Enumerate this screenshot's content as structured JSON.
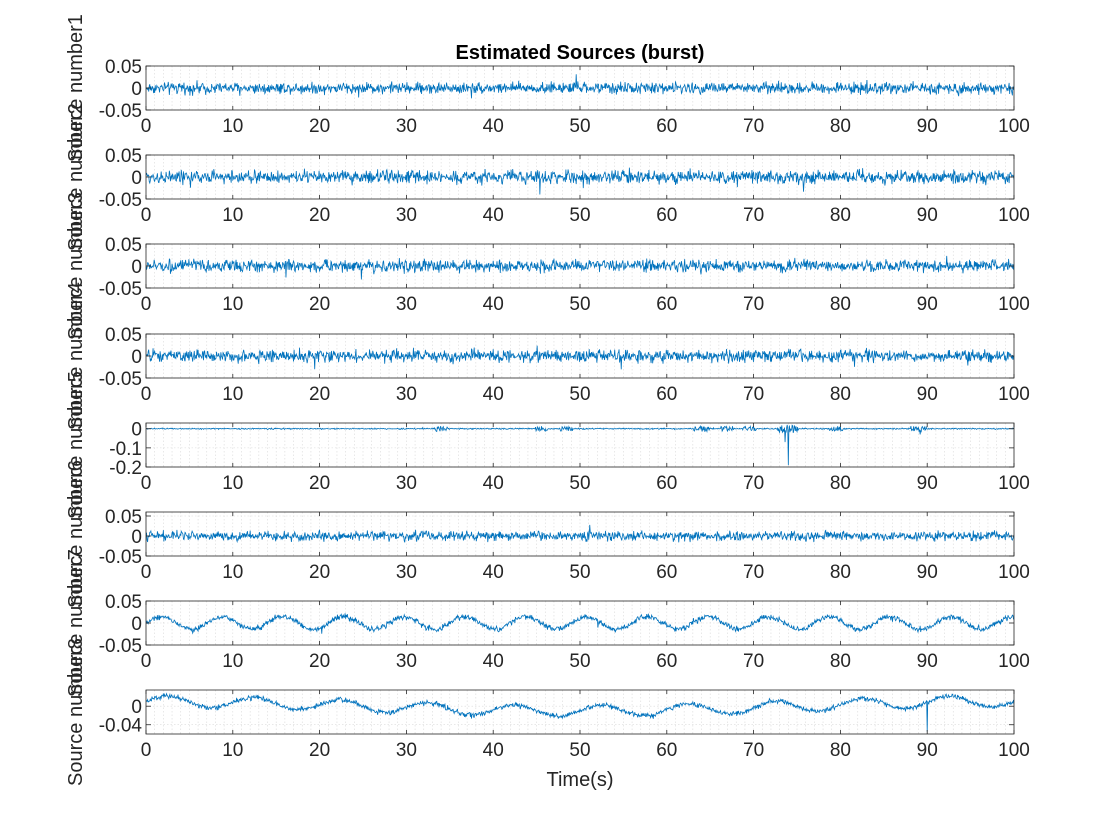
{
  "chart_data": {
    "type": "line",
    "title": "Estimated Sources (burst)",
    "xlabel": "Time(s)",
    "xlim": [
      0,
      100
    ],
    "xticks": [
      0,
      10,
      20,
      30,
      40,
      50,
      60,
      70,
      80,
      90,
      100
    ],
    "x_tick_labels": [
      "0",
      "10",
      "20",
      "30",
      "40",
      "50",
      "60",
      "70",
      "80",
      "90",
      "100"
    ],
    "grid": "on",
    "line_color": "#0072BD",
    "axes_color": "#262626",
    "grid_color": "#d9d9d9",
    "subplots": [
      {
        "ylabel": "Source number1",
        "ylim": [
          -0.05,
          0.05
        ],
        "yticks": [
          -0.05,
          0,
          0.05
        ],
        "y_tick_labels": [
          "-0.05",
          "0",
          "0.05"
        ],
        "signal": {
          "kind": "noise",
          "amplitude": 0.012,
          "spikes": [],
          "wave": []
        }
      },
      {
        "ylabel": "Source number2",
        "ylim": [
          -0.05,
          0.05
        ],
        "yticks": [
          -0.05,
          0,
          0.05
        ],
        "y_tick_labels": [
          "-0.05",
          "0",
          "0.05"
        ],
        "signal": {
          "kind": "noise",
          "amplitude": 0.014,
          "spikes": [],
          "wave": []
        }
      },
      {
        "ylabel": "Source number3",
        "ylim": [
          -0.05,
          0.05
        ],
        "yticks": [
          -0.05,
          0,
          0.05
        ],
        "y_tick_labels": [
          "-0.05",
          "0",
          "0.05"
        ],
        "signal": {
          "kind": "noise",
          "amplitude": 0.013,
          "spikes": [],
          "wave": []
        }
      },
      {
        "ylabel": "Source number4",
        "ylim": [
          -0.05,
          0.05
        ],
        "yticks": [
          -0.05,
          0,
          0.05
        ],
        "y_tick_labels": [
          "-0.05",
          "0",
          "0.05"
        ],
        "signal": {
          "kind": "noise",
          "amplitude": 0.013,
          "spikes": [],
          "wave": []
        }
      },
      {
        "ylabel": "Source number5",
        "ylim": [
          -0.2,
          0.03
        ],
        "yticks": [
          -0.2,
          -0.1,
          0
        ],
        "y_tick_labels": [
          "-0.2",
          "-0.1",
          "0"
        ],
        "signal": {
          "kind": "burst",
          "amplitude": 0.003,
          "bursts": [
            {
              "t": 34,
              "width": 0.8,
              "amp": 0.012
            },
            {
              "t": 45.5,
              "width": 0.8,
              "amp": 0.014
            },
            {
              "t": 48.5,
              "width": 0.8,
              "amp": 0.012
            },
            {
              "t": 64,
              "width": 0.9,
              "amp": 0.013
            },
            {
              "t": 67,
              "width": 0.8,
              "amp": 0.012
            },
            {
              "t": 69.5,
              "width": 0.8,
              "amp": 0.012
            },
            {
              "t": 74,
              "width": 1.2,
              "amp": 0.02
            },
            {
              "t": 79.5,
              "width": 0.8,
              "amp": 0.012
            },
            {
              "t": 89,
              "width": 0.9,
              "amp": 0.014
            }
          ],
          "spikes": [
            {
              "t": 74,
              "value": -0.19
            },
            {
              "t": 73.6,
              "value": -0.07
            },
            {
              "t": 89.2,
              "value": -0.03
            }
          ],
          "wave": []
        }
      },
      {
        "ylabel": "Source number6",
        "ylim": [
          -0.05,
          0.06
        ],
        "yticks": [
          -0.05,
          0,
          0.05
        ],
        "y_tick_labels": [
          "-0.05",
          "0",
          "0.05"
        ],
        "signal": {
          "kind": "noise",
          "amplitude": 0.011,
          "spikes": [],
          "wave": []
        }
      },
      {
        "ylabel": "Source number7",
        "ylim": [
          -0.05,
          0.05
        ],
        "yticks": [
          -0.05,
          0,
          0.05
        ],
        "y_tick_labels": [
          "-0.05",
          "0",
          "0.05"
        ],
        "signal": {
          "kind": "noise",
          "amplitude": 0.006,
          "spikes": [],
          "wave": [
            {
              "period": 7,
              "amp": 0.014
            }
          ]
        }
      },
      {
        "ylabel": "Source number8",
        "ylim": [
          -0.06,
          0.035
        ],
        "yticks": [
          -0.04,
          0
        ],
        "y_tick_labels": [
          "-0.04",
          "0"
        ],
        "signal": {
          "kind": "noise",
          "amplitude": 0.005,
          "spikes": [
            {
              "t": 90,
              "value": -0.055
            }
          ],
          "wave": [
            {
              "period": 10,
              "amp": 0.012,
              "drift": 0.01
            }
          ]
        }
      }
    ]
  }
}
